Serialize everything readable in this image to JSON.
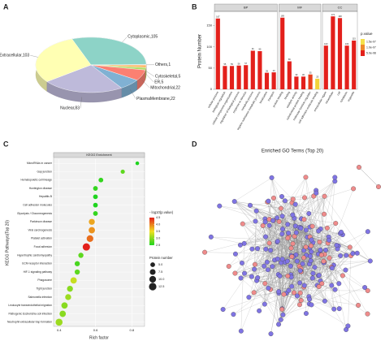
{
  "panel_labels": [
    "A",
    "B",
    "C",
    "D"
  ],
  "chart_data": [
    {
      "type": "pie",
      "categories": [
        "Cytoplasmic,105",
        "Others,1",
        "Cytoskeletal,5",
        "ER,5",
        "Mitochondrial,22",
        "PlasmaMembrane,22",
        "Nuclear,83",
        "Extracellular,103"
      ],
      "values": [
        105,
        1,
        5,
        5,
        22,
        22,
        83,
        103
      ],
      "colors": [
        "#8dd3c7",
        "#fccde5",
        "#fdb462",
        "#b3de69",
        "#fb8072",
        "#80b1d3",
        "#bebada",
        "#ffffb3"
      ]
    },
    {
      "type": "bar",
      "ylabel": "Protein Number",
      "ylim": [
        0,
        180
      ],
      "yticks": [
        0,
        50,
        100,
        150
      ],
      "facets": [
        {
          "name": "BP",
          "categories": [
            "cellular process",
            "biological regulation",
            "cellular component organization",
            "regulation of biological process",
            "response to stimulus",
            "metabolic process",
            "organic substance metabolic process",
            "localization",
            "transport"
          ],
          "values": [
            167,
            55,
            55,
            56,
            57,
            91,
            90,
            39,
            40
          ],
          "colors": [
            "#e3201b",
            "#e3201b",
            "#e3201b",
            "#e3201b",
            "#e3201b",
            "#e3201b",
            "#e3201b",
            "#e3201b",
            "#e3201b"
          ]
        },
        {
          "name": "MF",
          "categories": [
            "protein binding",
            "binding",
            "catalytic activity",
            "cytoskeletal protein binding",
            "molecular function regulator",
            "cell adhesion molecule binding"
          ],
          "values": [
            169,
            66,
            30,
            30,
            35,
            25
          ],
          "colors": [
            "#e3201b",
            "#e3201b",
            "#e3201b",
            "#e3201b",
            "#e8401d",
            "#f2d33a"
          ]
        },
        {
          "name": "CC",
          "categories": [
            "extracellular region",
            "intracellular",
            "cell",
            "cytoplasm",
            "organelle"
          ],
          "values": [
            103,
            172,
            168,
            103,
            115
          ],
          "colors": [
            "#e3201b",
            "#e3201b",
            "#e3201b",
            "#e3201b",
            "#e3201b"
          ]
        }
      ],
      "legend_title": "p.value",
      "colorbar": {
        "labels": [
          "1.5e-07",
          "1.0e-07",
          "5.0e-08"
        ],
        "colors": [
          "#f5e04a",
          "#ee8a2a",
          "#e3201b"
        ]
      }
    },
    {
      "type": "scatter",
      "title": "KEGG Enrichment",
      "xlabel": "Rich factor",
      "ylabel": "KEGG Pathways(Top 20)",
      "categories": [
        "MicroRNAs in cancer",
        "Gap junction",
        "Hematopoietic cell lineage",
        "Huntington disease",
        "Hepatitis B",
        "Cell adhesion molecules",
        "Glycolysis / Gluconeogenesis",
        "Parkinson disease",
        "Viral carcinogenesis",
        "Platelet activation",
        "Focal adhesion",
        "Hypertrophic cardiomyopathy",
        "ECM-receptor interaction",
        "HIF-1 signaling pathway",
        "Phagosome",
        "Tight junction",
        "Salmonella infection",
        "Leukocyte transendothelial migration",
        "Pathogenic Escherichia coli infection",
        "Neutrophil extracellular trap formation"
      ],
      "x": [
        0.83,
        0.75,
        0.63,
        0.6,
        0.6,
        0.6,
        0.6,
        0.58,
        0.58,
        0.57,
        0.55,
        0.52,
        0.5,
        0.5,
        0.48,
        0.46,
        0.45,
        0.43,
        0.42,
        0.4
      ],
      "size": [
        3,
        4,
        5,
        5,
        5,
        5,
        5,
        8,
        9,
        10,
        12,
        6,
        6,
        6,
        9,
        8,
        8,
        9,
        9,
        11
      ],
      "color_values": [
        2.3,
        2.8,
        2.6,
        2.6,
        2.5,
        2.5,
        2.6,
        3.8,
        3.9,
        4.1,
        4.6,
        2.8,
        2.7,
        2.8,
        3.3,
        3.0,
        3.1,
        3.0,
        3.0,
        3.1
      ],
      "xlim": [
        0.37,
        0.87
      ],
      "xticks": [
        0.4,
        0.6,
        0.8
      ],
      "colorbar_title": "- log10(p.value)",
      "colorbar_ticks": [
        4.5,
        {
          "value": 4,
          "label": "4.0"
        },
        3.5,
        {
          "value": 3,
          "label": "3.0"
        },
        2.5
      ],
      "colorbar_colors": [
        "#1fd41f",
        "#f0e020",
        "#e3201b"
      ],
      "size_title": "Protein number",
      "size_ticks": [
        {
          "value": 5,
          "label": "5.0"
        },
        7.5,
        {
          "value": 10,
          "label": "10.0"
        },
        12.5
      ]
    }
  ],
  "network": {
    "title": "Enriched GO Terms (Top 20)"
  }
}
